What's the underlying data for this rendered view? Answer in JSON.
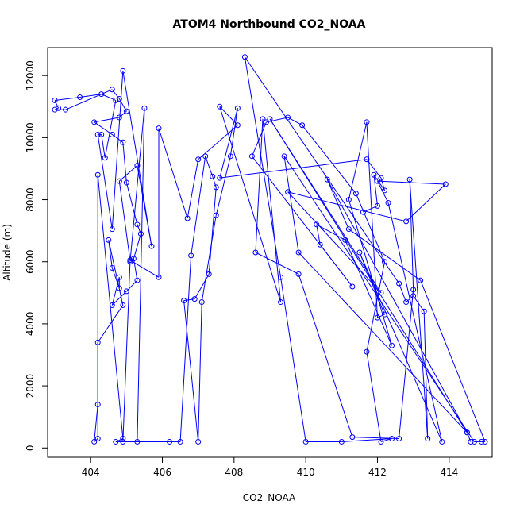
{
  "chart_data": {
    "type": "scatter",
    "title": "ATOM4 Northbound CO2_NOAA",
    "xlabel": "CO2_NOAA",
    "ylabel": "Altitude (m)",
    "xlim": [
      402.8,
      415.2
    ],
    "ylim": [
      -300,
      12900
    ],
    "xticks": [
      404,
      406,
      408,
      410,
      412,
      414
    ],
    "yticks": [
      0,
      2000,
      4000,
      6000,
      8000,
      10000,
      12000
    ],
    "grid": false,
    "legend": "none",
    "series_color": "#0000FF",
    "marker": "open-circle",
    "connected": true,
    "series": [
      {
        "points": [
          [
            414.6,
            200
          ],
          [
            414.5,
            500
          ],
          [
            410.6,
            8650
          ],
          [
            411.2,
            7050
          ],
          [
            413.2,
            5400
          ],
          [
            415.0,
            200
          ],
          [
            414.9,
            200
          ],
          [
            414.7,
            200
          ],
          [
            409.4,
            9400
          ],
          [
            409.8,
            6300
          ],
          [
            414.5,
            500
          ],
          [
            409.0,
            10600
          ],
          [
            412.1,
            5000
          ],
          [
            409.5,
            8250
          ],
          [
            412.8,
            7300
          ],
          [
            413.9,
            8500
          ],
          [
            412.0,
            8600
          ],
          [
            412.3,
            7900
          ],
          [
            413.8,
            200
          ],
          [
            411.5,
            6300
          ],
          [
            412.2,
            4300
          ],
          [
            412.0,
            4200
          ],
          [
            411.7,
            10500
          ],
          [
            411.2,
            8000
          ],
          [
            412.4,
            3300
          ],
          [
            411.1,
            6700
          ],
          [
            410.3,
            7200
          ],
          [
            410.4,
            6550
          ],
          [
            411.3,
            5200
          ],
          [
            408.5,
            9400
          ],
          [
            408.9,
            10500
          ],
          [
            409.5,
            10650
          ],
          [
            409.9,
            10400
          ],
          [
            411.4,
            8200
          ],
          [
            412.2,
            6000
          ],
          [
            411.7,
            3100
          ],
          [
            412.1,
            200
          ],
          [
            412.4,
            300
          ],
          [
            411.0,
            200
          ],
          [
            410.0,
            200
          ],
          [
            409.3,
            5500
          ],
          [
            408.3,
            12600
          ],
          [
            412.6,
            5300
          ],
          [
            412.8,
            4700
          ],
          [
            413.0,
            4900
          ],
          [
            413.3,
            4400
          ],
          [
            413.4,
            300
          ],
          [
            412.9,
            8650
          ],
          [
            413.0,
            5100
          ],
          [
            412.6,
            300
          ],
          [
            411.3,
            350
          ],
          [
            409.8,
            5600
          ],
          [
            408.6,
            6300
          ],
          [
            408.8,
            10600
          ],
          [
            409.3,
            4700
          ],
          [
            407.6,
            11000
          ],
          [
            408.1,
            10400
          ],
          [
            407.0,
            9300
          ],
          [
            406.7,
            7400
          ],
          [
            405.9,
            10300
          ],
          [
            405.9,
            5500
          ],
          [
            405.1,
            6050
          ],
          [
            404.8,
            8600
          ],
          [
            405.3,
            9100
          ],
          [
            405.7,
            6500
          ],
          [
            404.9,
            12150
          ],
          [
            404.6,
            7050
          ],
          [
            404.2,
            10100
          ],
          [
            404.3,
            10100
          ],
          [
            404.4,
            9350
          ],
          [
            404.7,
            11200
          ],
          [
            404.3,
            11400
          ],
          [
            403.7,
            11300
          ],
          [
            403.0,
            11200
          ],
          [
            403.1,
            10950
          ],
          [
            403.0,
            10900
          ],
          [
            403.3,
            10900
          ],
          [
            404.6,
            11550
          ],
          [
            404.8,
            11250
          ],
          [
            405.0,
            10850
          ],
          [
            404.8,
            10650
          ],
          [
            404.1,
            10500
          ],
          [
            404.6,
            10100
          ],
          [
            404.9,
            9850
          ],
          [
            405.0,
            8550
          ],
          [
            405.3,
            7200
          ],
          [
            405.4,
            6900
          ],
          [
            405.2,
            6100
          ],
          [
            405.3,
            5400
          ],
          [
            405.0,
            5050
          ],
          [
            404.6,
            4600
          ],
          [
            404.8,
            5500
          ],
          [
            404.8,
            5150
          ],
          [
            404.6,
            5800
          ],
          [
            404.5,
            6700
          ],
          [
            404.9,
            4600
          ],
          [
            404.2,
            3400
          ],
          [
            404.2,
            1400
          ],
          [
            404.1,
            200
          ],
          [
            404.2,
            300
          ],
          [
            404.2,
            8800
          ],
          [
            404.9,
            300
          ],
          [
            404.7,
            200
          ],
          [
            405.3,
            200
          ],
          [
            405.5,
            10950
          ],
          [
            405.1,
            6000
          ],
          [
            404.9,
            200
          ],
          [
            406.2,
            200
          ],
          [
            406.5,
            200
          ],
          [
            406.8,
            6200
          ],
          [
            407.2,
            9400
          ],
          [
            407.4,
            8750
          ],
          [
            407.5,
            8400
          ],
          [
            407.3,
            5600
          ],
          [
            406.9,
            4800
          ],
          [
            406.6,
            4750
          ],
          [
            407.0,
            200
          ],
          [
            407.1,
            4700
          ],
          [
            407.5,
            7500
          ],
          [
            407.9,
            9400
          ],
          [
            408.1,
            10950
          ],
          [
            407.6,
            8700
          ],
          [
            411.7,
            9300
          ],
          [
            412.1,
            8700
          ],
          [
            412.2,
            8300
          ],
          [
            411.9,
            8800
          ],
          [
            412.0,
            7800
          ],
          [
            411.6,
            7600
          ]
        ]
      }
    ]
  }
}
